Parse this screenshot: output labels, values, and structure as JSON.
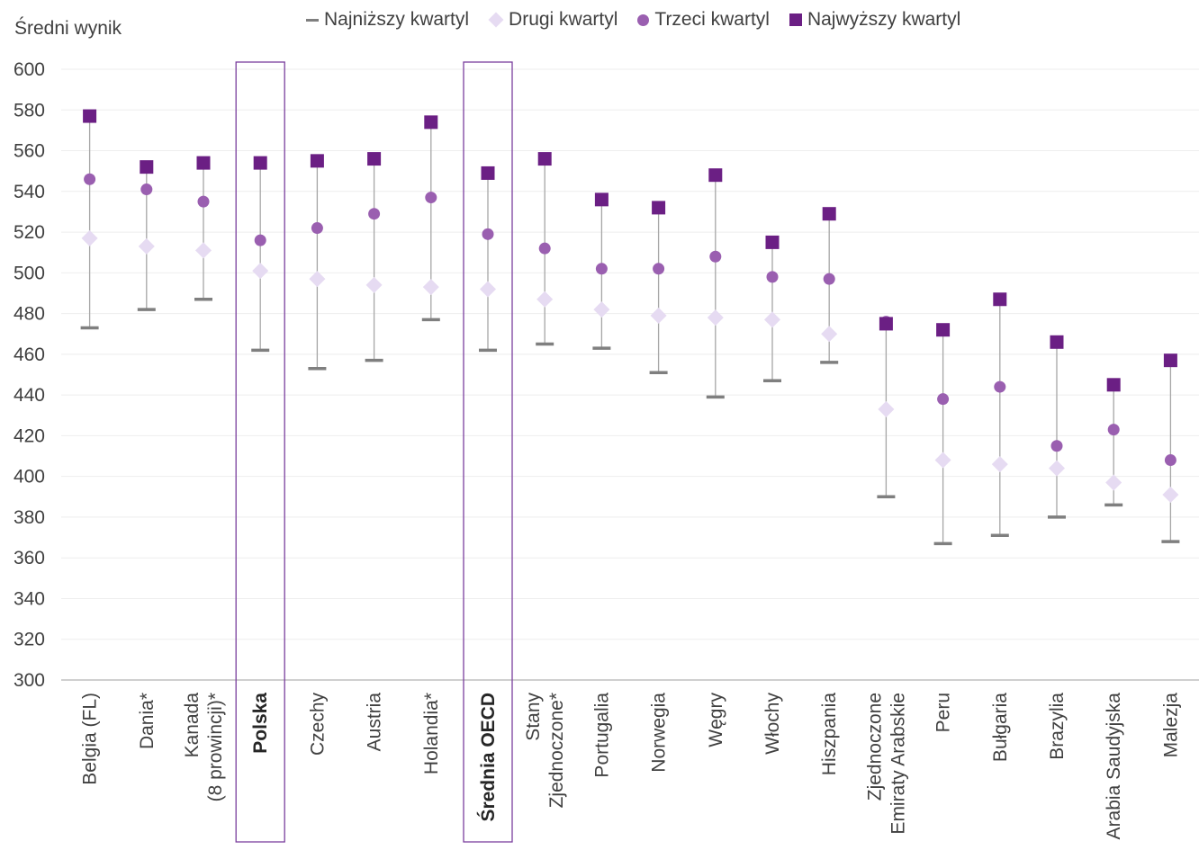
{
  "chart_data": {
    "type": "scatter",
    "ylabel": "Średni wynik",
    "ylim": [
      300,
      600
    ],
    "yticks": [
      300,
      320,
      340,
      360,
      380,
      400,
      420,
      440,
      460,
      480,
      500,
      520,
      540,
      560,
      580,
      600
    ],
    "grid": true,
    "legend_position": "top",
    "categories": [
      [
        "Belgia (FL)"
      ],
      [
        "Dania*"
      ],
      [
        "Kanada",
        "(8 prowincji)*"
      ],
      [
        "Polska"
      ],
      [
        "Czechy"
      ],
      [
        "Austria"
      ],
      [
        "Holandia*"
      ],
      [
        "Średnia OECD"
      ],
      [
        "Stany",
        "Zjednoczone*"
      ],
      [
        "Portugalia"
      ],
      [
        "Norwegia"
      ],
      [
        "Węgry"
      ],
      [
        "Włochy"
      ],
      [
        "Hiszpania"
      ],
      [
        "Zjednoczone",
        "Emiraty Arabskie"
      ],
      [
        "Peru"
      ],
      [
        "Bułgaria"
      ],
      [
        "Brazylia"
      ],
      [
        "Arabia Saudyjska"
      ],
      [
        "Malezja"
      ]
    ],
    "highlighted": [
      "Polska",
      "Średnia OECD"
    ],
    "series": [
      {
        "name": "Najniższy kwartyl",
        "marker": "dash",
        "color": "#7f7f7f",
        "values": [
          473,
          482,
          487,
          462,
          453,
          457,
          477,
          462,
          465,
          463,
          451,
          439,
          447,
          456,
          390,
          367,
          371,
          380,
          386,
          368
        ]
      },
      {
        "name": "Drugi kwartyl",
        "marker": "diamond",
        "color": "#e6dbf2",
        "values": [
          517,
          513,
          511,
          501,
          497,
          494,
          493,
          492,
          487,
          482,
          479,
          478,
          477,
          470,
          433,
          408,
          406,
          404,
          397,
          391
        ]
      },
      {
        "name": "Trzeci kwartyl",
        "marker": "circle",
        "color": "#9a5fb0",
        "values": [
          546,
          541,
          535,
          516,
          522,
          529,
          537,
          519,
          512,
          502,
          502,
          508,
          498,
          497,
          476,
          438,
          444,
          415,
          423,
          408
        ]
      },
      {
        "name": "Najwyższy kwartyl",
        "marker": "square",
        "color": "#6b1f84",
        "values": [
          577,
          552,
          554,
          554,
          555,
          556,
          574,
          549,
          556,
          536,
          532,
          548,
          515,
          529,
          475,
          472,
          487,
          466,
          445,
          457
        ]
      }
    ],
    "colors": {
      "highlight_box": "#7b3f9e",
      "whisker": "#a6a6a6",
      "grid": "#eeeeee",
      "axis": "#bfbfbf"
    }
  }
}
